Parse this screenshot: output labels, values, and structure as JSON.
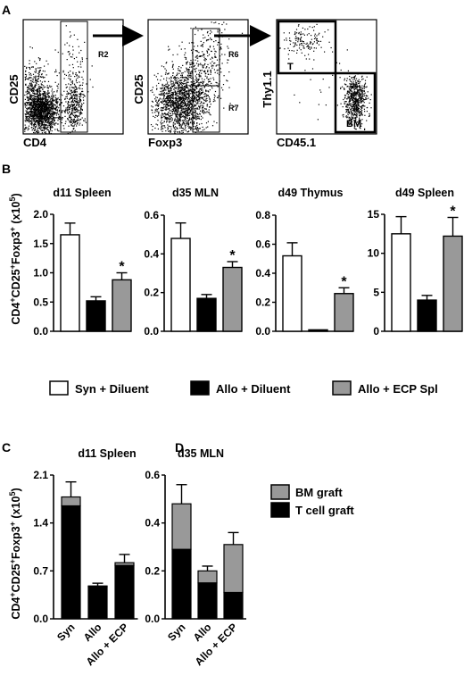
{
  "panel_letters": {
    "a": "A",
    "b": "B",
    "c": "C",
    "d": "D"
  },
  "panel_a": {
    "plots": [
      {
        "ylabel": "CD25",
        "xlabel": "CD4",
        "gates": [
          "R2"
        ]
      },
      {
        "ylabel": "CD25",
        "xlabel": "Foxp3",
        "gates": [
          "R6",
          "R7"
        ]
      },
      {
        "ylabel": "Thy1.1",
        "xlabel": "CD45.1",
        "gates": [
          "T",
          "BM"
        ]
      }
    ]
  },
  "panel_b_ylabel": "CD4+CD25+Foxp3+ (x10^5)",
  "panel_cd_ylabel": "CD4+CD25+Foxp3+ (x10^5)",
  "legend_b": [
    {
      "label": "Syn + Diluent",
      "color": "#ffffff"
    },
    {
      "label": "Allo + Diluent",
      "color": "#000000"
    },
    {
      "label": "Allo + ECP Spl",
      "color": "#999999"
    }
  ],
  "legend_d": [
    {
      "label": "BM graft",
      "color": "#999999"
    },
    {
      "label": "T cell graft",
      "color": "#000000"
    }
  ],
  "chart_data": [
    {
      "type": "bar",
      "title": "d11 Spleen",
      "categories": [
        "Syn + Diluent",
        "Allo + Diluent",
        "Allo + ECP Spl"
      ],
      "values": [
        1.65,
        0.52,
        0.88
      ],
      "errors": [
        0.2,
        0.07,
        0.12
      ],
      "significant": [
        false,
        false,
        true
      ],
      "ylim": [
        0,
        2.0
      ],
      "yticks": [
        "0.0",
        "0.5",
        "1.0",
        "1.5",
        "2.0"
      ],
      "colors": [
        "#ffffff",
        "#000000",
        "#999999"
      ]
    },
    {
      "type": "bar",
      "title": "d35 MLN",
      "categories": [
        "Syn + Diluent",
        "Allo + Diluent",
        "Allo + ECP Spl"
      ],
      "values": [
        0.48,
        0.17,
        0.33
      ],
      "errors": [
        0.08,
        0.02,
        0.03
      ],
      "significant": [
        false,
        false,
        true
      ],
      "ylim": [
        0,
        0.6
      ],
      "yticks": [
        "0.0",
        "0.2",
        "0.4",
        "0.6"
      ],
      "colors": [
        "#ffffff",
        "#000000",
        "#999999"
      ]
    },
    {
      "type": "bar",
      "title": "d49 Thymus",
      "categories": [
        "Syn + Diluent",
        "Allo + Diluent",
        "Allo + ECP Spl"
      ],
      "values": [
        0.52,
        0.01,
        0.26
      ],
      "errors": [
        0.09,
        0.0,
        0.04
      ],
      "significant": [
        false,
        false,
        true
      ],
      "ylim": [
        0,
        0.8
      ],
      "yticks": [
        "0.0",
        "0.2",
        "0.4",
        "0.6",
        "0.8"
      ],
      "colors": [
        "#ffffff",
        "#000000",
        "#999999"
      ]
    },
    {
      "type": "bar",
      "title": "d49 Spleen",
      "categories": [
        "Syn + Diluent",
        "Allo + Diluent",
        "Allo + ECP Spl"
      ],
      "values": [
        12.5,
        4.0,
        12.2
      ],
      "errors": [
        2.2,
        0.6,
        2.4
      ],
      "significant": [
        false,
        false,
        true
      ],
      "ylim": [
        0,
        15
      ],
      "yticks": [
        "0",
        "5",
        "10",
        "15"
      ],
      "colors": [
        "#ffffff",
        "#000000",
        "#999999"
      ]
    },
    {
      "type": "bar",
      "stacked": true,
      "title": "d11 Spleen",
      "categories": [
        "Syn",
        "Allo",
        "Allo + ECP"
      ],
      "series": [
        {
          "name": "T cell graft",
          "values": [
            1.65,
            0.47,
            0.78
          ],
          "color": "#000000"
        },
        {
          "name": "BM graft",
          "values": [
            0.13,
            0.01,
            0.04
          ],
          "color": "#999999"
        }
      ],
      "totals": [
        1.78,
        0.48,
        0.82
      ],
      "errors": [
        0.22,
        0.04,
        0.12
      ],
      "ylim": [
        0,
        2.1
      ],
      "yticks": [
        "0.0",
        "0.7",
        "1.4",
        "2.1"
      ]
    },
    {
      "type": "bar",
      "stacked": true,
      "title": "d35 MLN",
      "categories": [
        "Syn",
        "Allo",
        "Allo + ECP"
      ],
      "series": [
        {
          "name": "T cell graft",
          "values": [
            0.29,
            0.15,
            0.11
          ],
          "color": "#000000"
        },
        {
          "name": "BM graft",
          "values": [
            0.19,
            0.05,
            0.2
          ],
          "color": "#999999"
        }
      ],
      "totals": [
        0.48,
        0.2,
        0.31
      ],
      "errors": [
        0.08,
        0.02,
        0.05
      ],
      "ylim": [
        0,
        0.6
      ],
      "yticks": [
        "0.0",
        "0.2",
        "0.4",
        "0.6"
      ]
    }
  ]
}
